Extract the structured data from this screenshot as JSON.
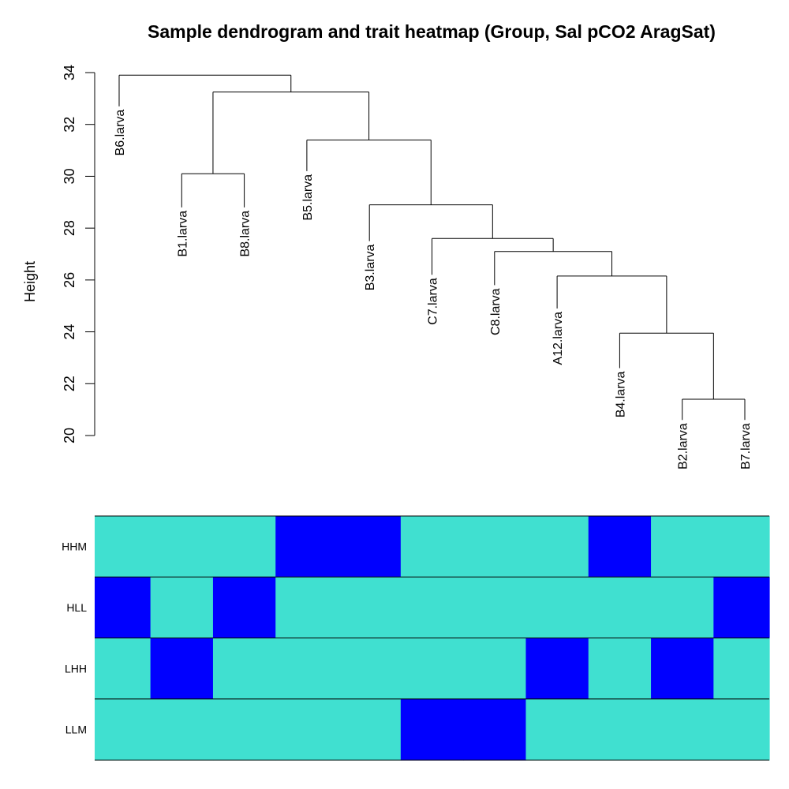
{
  "chart_data": {
    "type": "dendrogram-heatmap",
    "title": "Sample dendrogram and trait heatmap (Group, Sal pCO2 AragSat)",
    "ylabel": "Height",
    "ylim": [
      20,
      34
    ],
    "yticks": [
      20,
      22,
      24,
      26,
      28,
      30,
      32,
      34
    ],
    "leaves": [
      {
        "name": "B6.larva",
        "height": 32.7
      },
      {
        "name": "B1.larva",
        "height": 28.8
      },
      {
        "name": "B8.larva",
        "height": 28.8
      },
      {
        "name": "B5.larva",
        "height": 30.2
      },
      {
        "name": "B3.larva",
        "height": 27.5
      },
      {
        "name": "C7.larva",
        "height": 26.2
      },
      {
        "name": "C8.larva",
        "height": 25.8
      },
      {
        "name": "A12.larva",
        "height": 24.9
      },
      {
        "name": "B4.larva",
        "height": 22.6
      },
      {
        "name": "B2.larva",
        "height": 20.6
      },
      {
        "name": "B7.larva",
        "height": 20.6
      }
    ],
    "merges": [
      {
        "left": -10,
        "right": -11,
        "height": 21.4
      },
      {
        "left": -9,
        "right": 1,
        "height": 23.95
      },
      {
        "left": -2,
        "right": -3,
        "height": 30.1
      },
      {
        "left": -8,
        "right": 2,
        "height": 26.15
      },
      {
        "left": -7,
        "right": 4,
        "height": 27.1
      },
      {
        "left": -6,
        "right": 5,
        "height": 27.6
      },
      {
        "left": -5,
        "right": 6,
        "height": 28.9
      },
      {
        "left": -4,
        "right": 7,
        "height": 31.4
      },
      {
        "left": 3,
        "right": 8,
        "height": 33.25
      },
      {
        "left": -1,
        "right": 9,
        "height": 33.9
      }
    ],
    "traits": [
      {
        "name": "HHM",
        "values": [
          0,
          0,
          0,
          1,
          1,
          0,
          0,
          0,
          1,
          0,
          0
        ]
      },
      {
        "name": "HLL",
        "values": [
          1,
          0,
          1,
          0,
          0,
          0,
          0,
          0,
          0,
          0,
          1
        ]
      },
      {
        "name": "LHH",
        "values": [
          0,
          1,
          0,
          0,
          0,
          0,
          0,
          1,
          0,
          1,
          0
        ]
      },
      {
        "name": "LLM",
        "values": [
          0,
          0,
          0,
          0,
          0,
          1,
          1,
          0,
          0,
          0,
          0
        ]
      }
    ],
    "colors": {
      "low": "#40E0D0",
      "high": "#0000FF"
    }
  }
}
